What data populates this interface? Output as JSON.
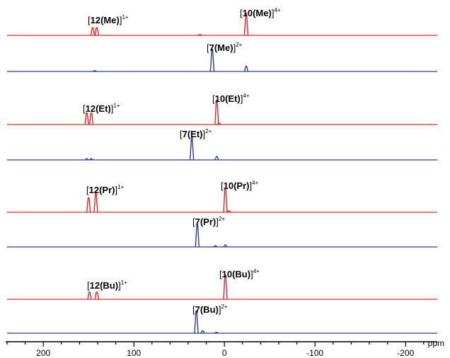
{
  "chart_data": {
    "type": "line",
    "title": "",
    "xlabel": "ppm",
    "ylabel": "",
    "xlim": [
      240,
      -235
    ],
    "axis": {
      "major_ticks": [
        200,
        100,
        0,
        -100,
        -200
      ],
      "minor_step": 20
    },
    "traces": [
      {
        "label_main": "12(Me)",
        "label_charge": "1+",
        "color": "#e8242a",
        "peaks": [
          {
            "ppm": 145.5,
            "height": 0.32
          },
          {
            "ppm": 141.0,
            "height": 0.32
          }
        ]
      },
      {
        "label_main": "10(Me)",
        "label_charge": "4+",
        "color": "#e8242a",
        "peaks": [
          {
            "ppm": -24.0,
            "height": 0.92
          },
          {
            "ppm": 27.0,
            "height": 0.04
          }
        ]
      },
      {
        "label_main": "7(Me)",
        "label_charge": "2+",
        "color": "#2e3c96",
        "peaks": [
          {
            "ppm": 13.5,
            "height": 0.92
          },
          {
            "ppm": -24.0,
            "height": 0.22
          },
          {
            "ppm": 143.0,
            "height": 0.03
          }
        ]
      },
      {
        "label_main": "12(Et)",
        "label_charge": "1+",
        "color": "#e8242a",
        "peaks": [
          {
            "ppm": 152.0,
            "height": 0.48
          },
          {
            "ppm": 147.0,
            "height": 0.48
          }
        ]
      },
      {
        "label_main": "10(Et)",
        "label_charge": "4+",
        "color": "#e8242a",
        "peaks": [
          {
            "ppm": 8.5,
            "height": 1.0
          },
          {
            "ppm": 6.0,
            "height": 0.06
          }
        ]
      },
      {
        "label_main": "7(Et)",
        "label_charge": "2+",
        "color": "#2e3c96",
        "peaks": [
          {
            "ppm": 36.0,
            "height": 0.92
          },
          {
            "ppm": 8.5,
            "height": 0.14
          },
          {
            "ppm": 152.0,
            "height": 0.05
          },
          {
            "ppm": 147.0,
            "height": 0.05
          }
        ]
      },
      {
        "label_main": "12(Pr)",
        "label_charge": "1+",
        "color": "#e8242a",
        "peaks": [
          {
            "ppm": 150.0,
            "height": 0.6
          },
          {
            "ppm": 142.0,
            "height": 0.78
          }
        ]
      },
      {
        "label_main": "10(Pr)",
        "label_charge": "4+",
        "color": "#e8242a",
        "peaks": [
          {
            "ppm": -1.0,
            "height": 1.0
          },
          {
            "ppm": -5.0,
            "height": 0.06
          }
        ]
      },
      {
        "label_main": "7(Pr)",
        "label_charge": "2+",
        "color": "#2e3c96",
        "peaks": [
          {
            "ppm": 30.0,
            "height": 0.92
          },
          {
            "ppm": 10.0,
            "height": 0.05
          },
          {
            "ppm": -1.0,
            "height": 0.08
          }
        ]
      },
      {
        "label_main": "12(Bu)",
        "label_charge": "1+",
        "color": "#e8242a",
        "peaks": [
          {
            "ppm": 149.0,
            "height": 0.3
          },
          {
            "ppm": 141.0,
            "height": 0.3
          }
        ]
      },
      {
        "label_main": "10(Bu)",
        "label_charge": "4+",
        "color": "#e8242a",
        "peaks": [
          {
            "ppm": -1.0,
            "height": 1.0
          }
        ]
      },
      {
        "label_main": "7(Bu)",
        "label_charge": "2+",
        "color": "#2e3c96",
        "peaks": [
          {
            "ppm": 31.0,
            "height": 0.92
          },
          {
            "ppm": 24.0,
            "height": 0.1
          },
          {
            "ppm": 9.0,
            "height": 0.04
          }
        ]
      }
    ]
  }
}
